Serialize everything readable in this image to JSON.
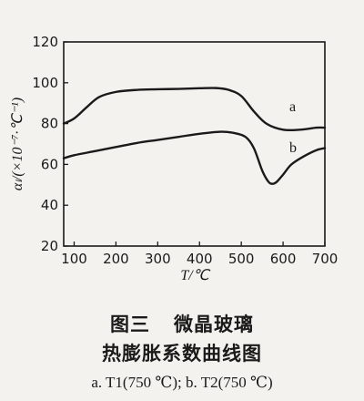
{
  "chart_data": {
    "type": "line",
    "xlabel": "T/℃",
    "ylabel": "αₗ/(×10⁻⁷·℃⁻¹)",
    "xlim": [
      75,
      700
    ],
    "ylim": [
      20,
      120
    ],
    "x_ticks": [
      100,
      200,
      300,
      400,
      500,
      600,
      700
    ],
    "y_ticks": [
      20,
      40,
      60,
      80,
      100,
      120
    ],
    "grid": false,
    "series": [
      {
        "name": "a",
        "x": [
          75,
          100,
          130,
          160,
          200,
          250,
          300,
          350,
          400,
          440,
          470,
          500,
          530,
          560,
          600,
          640,
          680,
          700
        ],
        "y": [
          80,
          82.5,
          88,
          93,
          95.5,
          96.5,
          96.8,
          97,
          97.3,
          97.4,
          96.5,
          93.5,
          86,
          80,
          77,
          77,
          78,
          78
        ]
      },
      {
        "name": "b",
        "x": [
          75,
          100,
          150,
          200,
          250,
          300,
          350,
          400,
          450,
          480,
          510,
          530,
          550,
          565,
          575,
          585,
          600,
          620,
          650,
          680,
          700
        ],
        "y": [
          63,
          64.5,
          66.5,
          68.5,
          70.5,
          72,
          73.5,
          75,
          76,
          75.5,
          73.5,
          68,
          57,
          51.5,
          50.5,
          51.5,
          55,
          60,
          64,
          67,
          68
        ]
      }
    ]
  },
  "caption": {
    "figure_no": "图三",
    "title_line1": "微晶玻璃",
    "title_line2": "热膨胀系数曲线图",
    "legend_line": "a. T1(750 ℃); b. T2(750 ℃)"
  }
}
